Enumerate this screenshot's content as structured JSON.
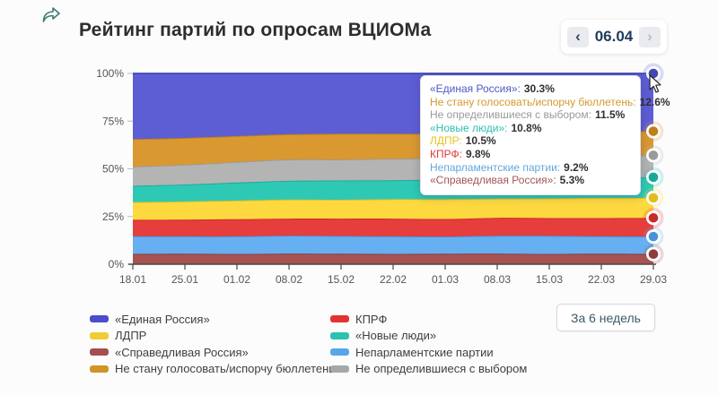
{
  "header": {
    "title": "Рейтинг партий по опросам ВЦИОМа"
  },
  "date_nav": {
    "prev_label": "‹",
    "current": "06.04",
    "next_label": "›"
  },
  "period_button": {
    "label": "За 6 недель"
  },
  "icons": {
    "share": "share-arrow-icon",
    "cursor": "mouse-pointer"
  },
  "chart_data": {
    "type": "area",
    "stacked": true,
    "title": "Рейтинг партий по опросам ВЦИОМа",
    "x_labels": [
      "18.01",
      "25.01",
      "01.02",
      "08.02",
      "15.02",
      "22.02",
      "01.03",
      "08.03",
      "15.03",
      "22.03",
      "29.03"
    ],
    "y_tick_labels": [
      "0%",
      "25%",
      "50%",
      "75%",
      "100%"
    ],
    "ylim": [
      0,
      100
    ],
    "grid": false,
    "legend_position": "bottom",
    "series": [
      {
        "key": "fair-russia",
        "name": "«Справедливая Россия»",
        "color": "#a85252",
        "stroke": "#8d3c3c",
        "values": [
          5.4,
          5.5,
          5.4,
          5.6,
          5.5,
          5.4,
          5.5,
          5.6,
          5.4,
          5.5,
          5.3
        ]
      },
      {
        "key": "nonparliamentary",
        "name": "Непарламентские партии",
        "color": "#66b0f2",
        "stroke": "#4a92d8",
        "values": [
          9.3,
          9.1,
          9.2,
          9.4,
          9.3,
          9.2,
          9.0,
          9.3,
          9.5,
          9.1,
          9.2
        ]
      },
      {
        "key": "kprf",
        "name": "КПРФ",
        "color": "#e63d3d",
        "stroke": "#c92b2b",
        "values": [
          8.6,
          8.8,
          9.0,
          8.9,
          9.1,
          9.3,
          9.2,
          9.4,
          9.3,
          9.6,
          9.8
        ]
      },
      {
        "key": "ldpr",
        "name": "ЛДПР",
        "color": "#fdd93f",
        "stroke": "#e2bd1c",
        "values": [
          9.3,
          9.5,
          9.8,
          10.0,
          9.9,
          10.2,
          10.4,
          10.1,
          10.3,
          10.6,
          10.5
        ]
      },
      {
        "key": "new-people",
        "name": "«Новые люди»",
        "color": "#2ec9b5",
        "stroke": "#17aa99",
        "values": [
          8.5,
          8.9,
          9.4,
          9.8,
          10.1,
          9.9,
          10.3,
          10.5,
          10.4,
          10.7,
          10.8
        ]
      },
      {
        "key": "undecided",
        "name": "Не определившиеся с выбором",
        "color": "#b4b4b4",
        "stroke": "#9b9b9b",
        "values": [
          10.1,
          10.4,
          10.8,
          11.2,
          11.0,
          11.3,
          11.1,
          11.4,
          11.2,
          11.3,
          11.5
        ]
      },
      {
        "key": "wont-vote",
        "name": "Не стану голосовать/испорчу бюллетень",
        "color": "#d99830",
        "stroke": "#bd7f17",
        "values": [
          14.4,
          14.0,
          13.6,
          13.2,
          13.5,
          13.1,
          12.9,
          13.0,
          12.8,
          12.7,
          12.6
        ]
      },
      {
        "key": "united-russia",
        "name": "«Единая Россия»",
        "color": "#5d5ed4",
        "stroke": "#4546b6",
        "values": [
          34.4,
          33.8,
          32.8,
          31.9,
          31.6,
          31.6,
          31.6,
          30.7,
          31.1,
          30.5,
          30.3
        ]
      }
    ]
  },
  "tooltip": {
    "rows": [
      {
        "label": "«Единая Россия»",
        "value": "30.3%",
        "color": "#4a5ac8"
      },
      {
        "label": "Не стану голосовать/испорчу бюллетень",
        "value": "12.6%",
        "color": "#d29a2e"
      },
      {
        "label": "Не определившиеся с выбором",
        "value": "11.5%",
        "color": "#9a9a9a"
      },
      {
        "label": "«Новые люди»",
        "value": "10.8%",
        "color": "#2bbfae"
      },
      {
        "label": "ЛДПР",
        "value": "10.5%",
        "color": "#e5c31e"
      },
      {
        "label": "КПРФ",
        "value": "9.8%",
        "color": "#e03a3a"
      },
      {
        "label": "Непарламентские партии",
        "value": "9.2%",
        "color": "#61a7dd"
      },
      {
        "label": "«Справедливая Россия»",
        "value": "5.3%",
        "color": "#a35555"
      }
    ]
  },
  "legend": {
    "columns": [
      [
        {
          "key": "united-russia",
          "label": "«Единая Россия»",
          "color": "#4c4cce"
        },
        {
          "key": "ldpr",
          "label": "ЛДПР",
          "color": "#f2cc33"
        },
        {
          "key": "fair-russia",
          "label": "«Справедливая Россия»",
          "color": "#a54e4e"
        },
        {
          "key": "wont-vote",
          "label": "Не стану голосовать/испорчу бюллетень",
          "color": "#ce9626"
        }
      ],
      [
        {
          "key": "kprf",
          "label": "КПРФ",
          "color": "#e23333"
        },
        {
          "key": "new-people",
          "label": "«Новые люди»",
          "color": "#2bc2af"
        },
        {
          "key": "nonparliamentary",
          "label": "Непарламентские партии",
          "color": "#57a7e8"
        },
        {
          "key": "undecided",
          "label": "Не определившиеся с выбором",
          "color": "#a7a7a7"
        }
      ]
    ]
  }
}
